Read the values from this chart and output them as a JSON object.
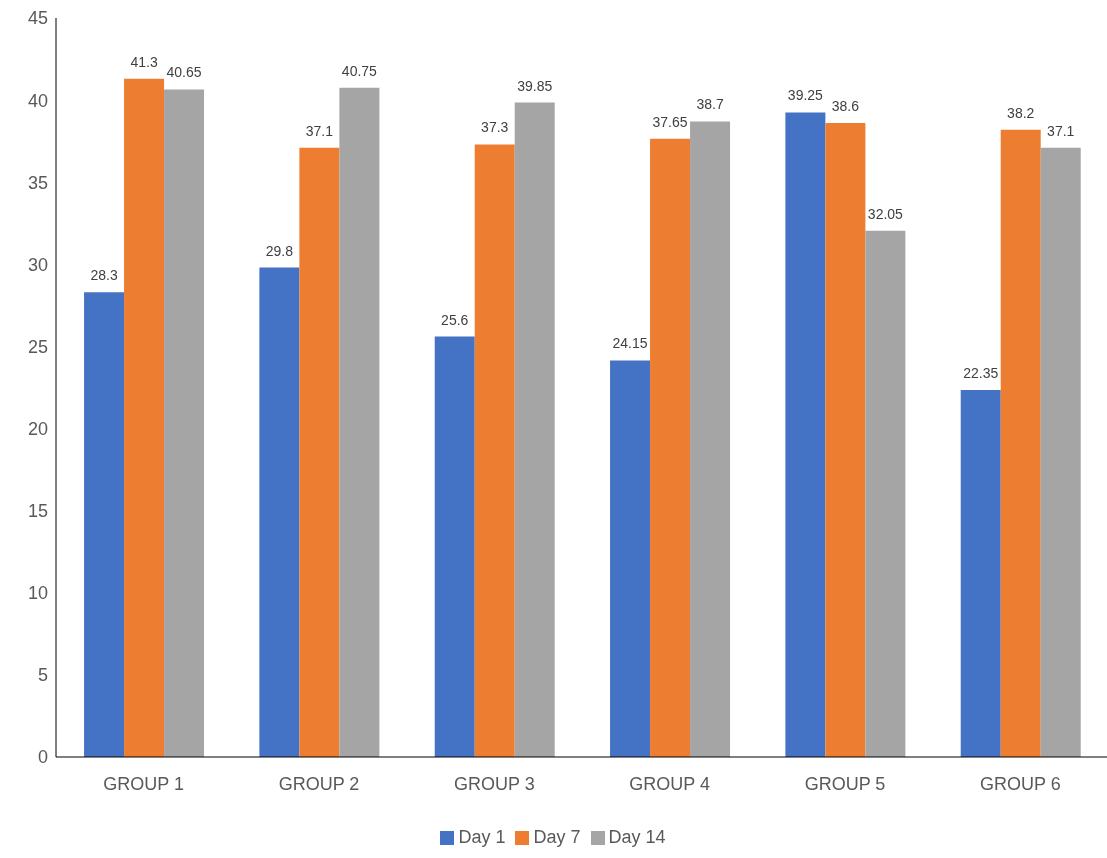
{
  "chart_data": {
    "type": "bar",
    "categories": [
      "GROUP 1",
      "GROUP 2",
      "GROUP 3",
      "GROUP 4",
      "GROUP 5",
      "GROUP 6"
    ],
    "series": [
      {
        "name": "Day 1",
        "color": "#4472c4",
        "values": [
          28.3,
          29.8,
          25.6,
          24.15,
          39.25,
          22.35
        ]
      },
      {
        "name": "Day 7",
        "color": "#ed7d31",
        "values": [
          41.3,
          37.1,
          37.3,
          37.65,
          38.6,
          38.2
        ]
      },
      {
        "name": "Day 14",
        "color": "#a5a5a5",
        "values": [
          40.65,
          40.75,
          39.85,
          38.7,
          32.05,
          37.1
        ]
      }
    ],
    "ylim": [
      0,
      45
    ],
    "yticks": [
      0,
      5,
      10,
      15,
      20,
      25,
      30,
      35,
      40,
      45
    ],
    "grid": false,
    "legend": "bottom",
    "data_labels": true
  }
}
